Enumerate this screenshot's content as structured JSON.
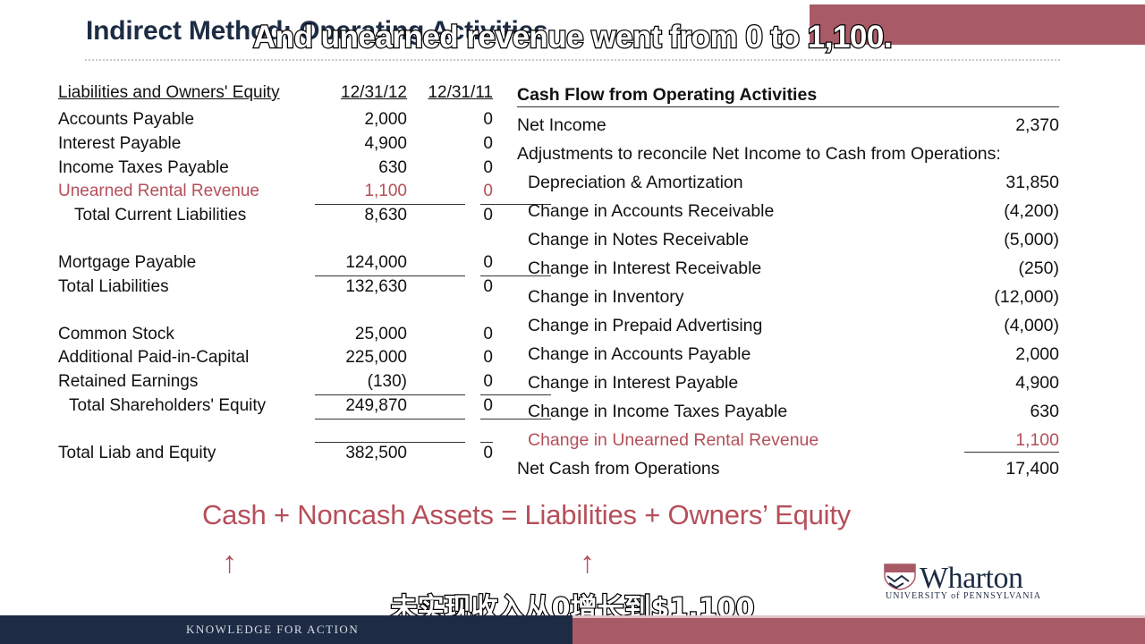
{
  "slide": {
    "title": "Indirect Method: Operating Activities",
    "subtitle_top": "And unearned revenue went from 0 to 1,100.",
    "subtitle_bottom": "未实现收入从0增长到$1,100",
    "equation": "Cash + Noncash Assets = Liabilities + Owners’ Equity",
    "arrow": "↑",
    "footer": "KNOWLEDGE FOR ACTION",
    "logo": {
      "name": "Wharton",
      "sub": "UNIVERSITY of PENNSYLVANIA"
    }
  },
  "balance_sheet": {
    "header": {
      "label": "Liabilities and Owners' Equity",
      "col1": "12/31/12",
      "col2": "12/31/11"
    },
    "rows": [
      {
        "label": "Accounts Payable",
        "v1": "2,000",
        "v2": "0"
      },
      {
        "label": "Interest Payable",
        "v1": "4,900",
        "v2": "0"
      },
      {
        "label": "Income Taxes Payable",
        "v1": "630",
        "v2": "0"
      },
      {
        "label": "Unearned Rental Revenue",
        "v1": "1,100",
        "v2": "0"
      },
      {
        "label": "Total Current Liabilities",
        "v1": "8,630",
        "v2": "0"
      },
      {
        "label": "Mortgage Payable",
        "v1": "124,000",
        "v2": "0"
      },
      {
        "label": "Total Liabilities",
        "v1": "132,630",
        "v2": "0"
      },
      {
        "label": "Common Stock",
        "v1": "25,000",
        "v2": "0"
      },
      {
        "label": "Additional Paid-in-Capital",
        "v1": "225,000",
        "v2": "0"
      },
      {
        "label": "Retained Earnings",
        "v1": "(130)",
        "v2": "0"
      },
      {
        "label": "Total Shareholders' Equity",
        "v1": "249,870",
        "v2": "0"
      },
      {
        "label": "Total Liab and Equity",
        "v1": "382,500",
        "v2": "0"
      }
    ]
  },
  "cash_flow": {
    "header": "Cash Flow from Operating Activities",
    "net_income": {
      "label": "Net Income",
      "value": "2,370"
    },
    "adjustments_label": "Adjustments to reconcile Net Income to Cash from Operations:",
    "rows": [
      {
        "label": "Depreciation & Amortization",
        "value": "31,850"
      },
      {
        "label": "Change in Accounts Receivable",
        "value": "(4,200)"
      },
      {
        "label": "Change in Notes Receivable",
        "value": "(5,000)"
      },
      {
        "label": "Change in Interest Receivable",
        "value": "(250)"
      },
      {
        "label": "Change in Inventory",
        "value": "(12,000)"
      },
      {
        "label": "Change in Prepaid Advertising",
        "value": "(4,000)"
      },
      {
        "label": "Change in Accounts Payable",
        "value": "2,000"
      },
      {
        "label": "Change in Interest Payable",
        "value": "4,900"
      },
      {
        "label": "Change in Income Taxes Payable",
        "value": "630"
      },
      {
        "label": "Change in Unearned Rental Revenue",
        "value": "1,100"
      }
    ],
    "net_cash": {
      "label": "Net Cash from Operations",
      "value": "17,400"
    }
  }
}
